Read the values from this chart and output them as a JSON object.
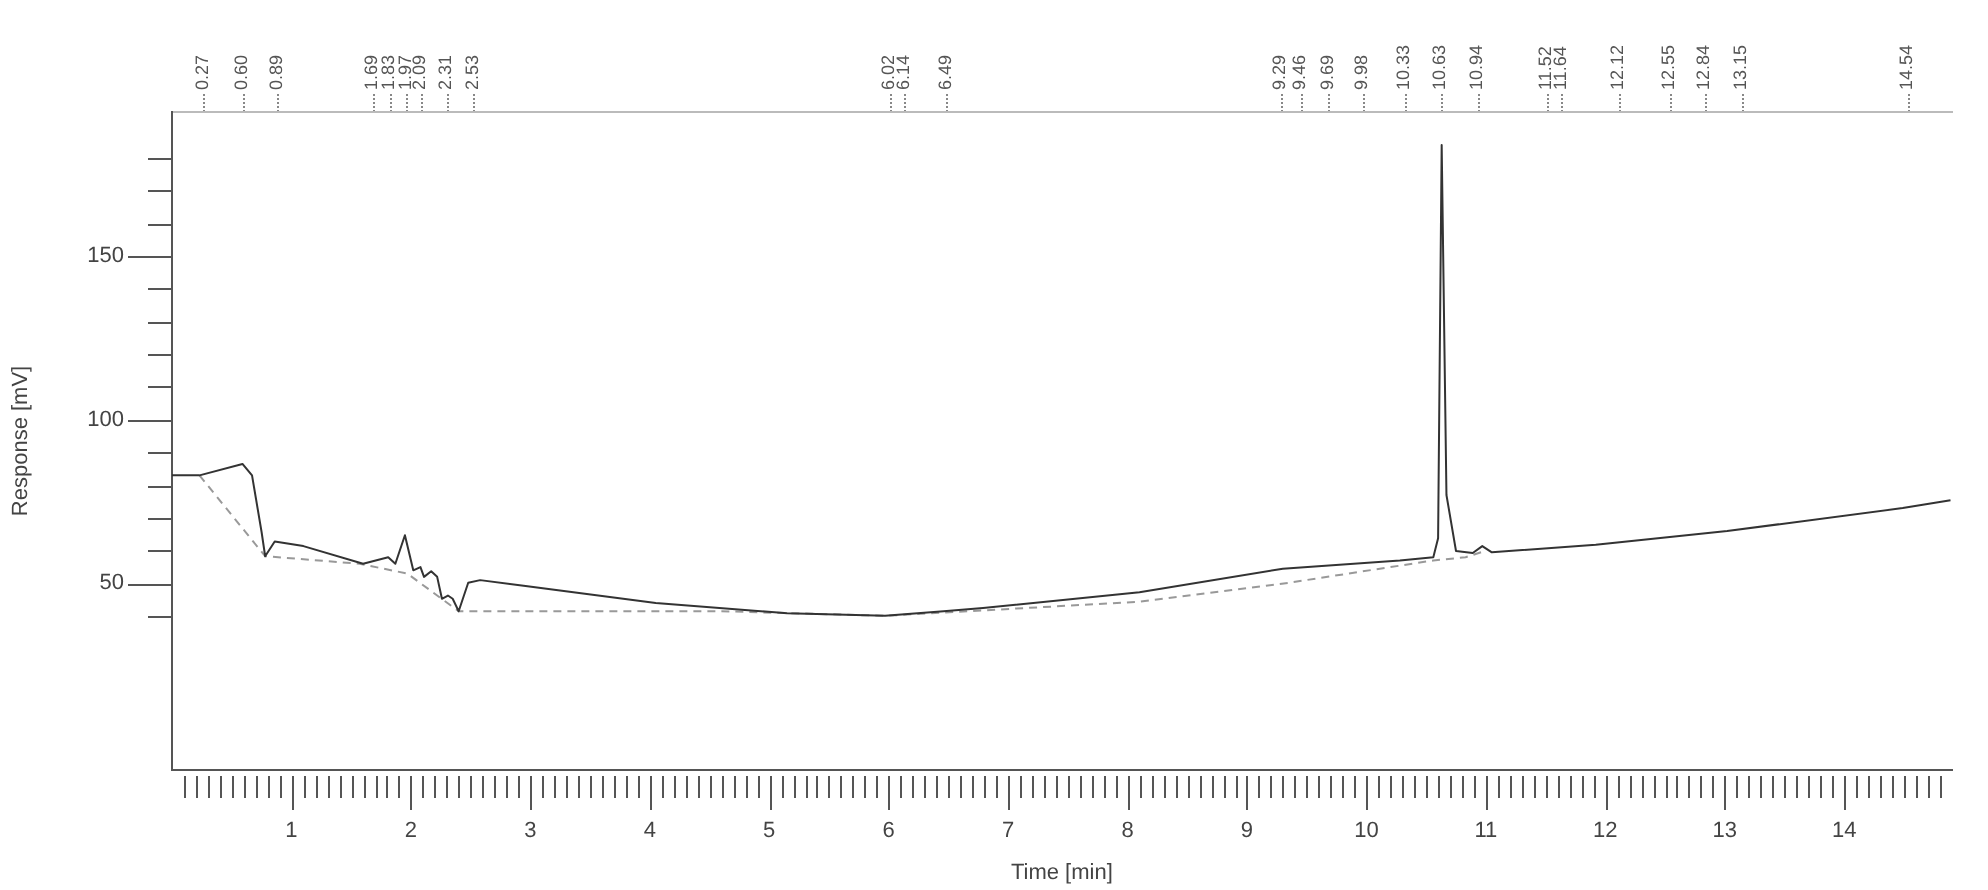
{
  "chart_data": {
    "type": "line",
    "xlabel": "Time [min]",
    "ylabel": "Response [mV]",
    "xlim": [
      0,
      14.9
    ],
    "ylim": [
      -7,
      194
    ],
    "xticks": [
      {
        "value": 0.1,
        "label": null
      },
      {
        "value": 0.2,
        "label": null
      },
      {
        "value": 0.3,
        "label": null
      },
      {
        "value": 0.4,
        "label": null
      },
      {
        "value": 0.5,
        "label": null
      },
      {
        "value": 0.6,
        "label": null
      },
      {
        "value": 0.7,
        "label": null
      },
      {
        "value": 0.8,
        "label": null
      },
      {
        "value": 0.9,
        "label": null
      },
      1,
      {
        "value": 1.1,
        "label": null
      },
      {
        "value": 1.2,
        "label": null
      },
      {
        "value": 1.3,
        "label": null
      },
      {
        "value": 1.4,
        "label": null
      },
      {
        "value": 1.5,
        "label": null
      },
      {
        "value": 1.6,
        "label": null
      },
      {
        "value": 1.7,
        "label": null
      },
      {
        "value": 1.8,
        "label": null
      },
      {
        "value": 1.9,
        "label": null
      },
      2,
      {
        "value": 2.1,
        "label": null
      },
      {
        "value": 2.2,
        "label": null
      },
      {
        "value": 2.3,
        "label": null
      },
      {
        "value": 2.4,
        "label": null
      },
      {
        "value": 2.5,
        "label": null
      },
      {
        "value": 2.6,
        "label": null
      },
      {
        "value": 2.7,
        "label": null
      },
      {
        "value": 2.8,
        "label": null
      },
      {
        "value": 2.9,
        "label": null
      },
      3,
      {
        "value": 3.1,
        "label": null
      },
      {
        "value": 3.2,
        "label": null
      },
      {
        "value": 3.3,
        "label": null
      },
      {
        "value": 3.4,
        "label": null
      },
      {
        "value": 3.5,
        "label": null
      },
      {
        "value": 3.6,
        "label": null
      },
      {
        "value": 3.7,
        "label": null
      },
      {
        "value": 3.8,
        "label": null
      },
      {
        "value": 3.9,
        "label": null
      },
      4,
      {
        "value": 4.1,
        "label": null
      },
      {
        "value": 4.2,
        "label": null
      },
      {
        "value": 4.3,
        "label": null
      },
      {
        "value": 4.4,
        "label": null
      },
      {
        "value": 4.5,
        "label": null
      },
      {
        "value": 4.6,
        "label": null
      },
      {
        "value": 4.7,
        "label": null
      },
      {
        "value": 4.8,
        "label": null
      },
      {
        "value": 4.9,
        "label": null
      },
      5,
      {
        "value": 5.1,
        "label": null
      },
      {
        "value": 5.2,
        "label": null
      },
      {
        "value": 5.3,
        "label": null
      },
      {
        "value": 5.4,
        "label": null
      },
      {
        "value": 5.5,
        "label": null
      },
      {
        "value": 5.6,
        "label": null
      },
      {
        "value": 5.7,
        "label": null
      },
      {
        "value": 5.8,
        "label": null
      },
      {
        "value": 5.9,
        "label": null
      },
      6,
      {
        "value": 6.1,
        "label": null
      },
      {
        "value": 6.2,
        "label": null
      },
      {
        "value": 6.3,
        "label": null
      },
      {
        "value": 6.4,
        "label": null
      },
      {
        "value": 6.5,
        "label": null
      },
      {
        "value": 6.6,
        "label": null
      },
      {
        "value": 6.7,
        "label": null
      },
      {
        "value": 6.8,
        "label": null
      },
      {
        "value": 6.9,
        "label": null
      },
      7,
      {
        "value": 7.1,
        "label": null
      },
      {
        "value": 7.2,
        "label": null
      },
      {
        "value": 7.3,
        "label": null
      },
      {
        "value": 7.4,
        "label": null
      },
      {
        "value": 7.5,
        "label": null
      },
      {
        "value": 7.6,
        "label": null
      },
      {
        "value": 7.7,
        "label": null
      },
      {
        "value": 7.8,
        "label": null
      },
      {
        "value": 7.9,
        "label": null
      },
      8,
      {
        "value": 8.1,
        "label": null
      },
      {
        "value": 8.2,
        "label": null
      },
      {
        "value": 8.3,
        "label": null
      },
      {
        "value": 8.4,
        "label": null
      },
      {
        "value": 8.5,
        "label": null
      },
      {
        "value": 8.6,
        "label": null
      },
      {
        "value": 8.7,
        "label": null
      },
      {
        "value": 8.8,
        "label": null
      },
      {
        "value": 8.9,
        "label": null
      },
      9,
      {
        "value": 9.1,
        "label": null
      },
      {
        "value": 9.2,
        "label": null
      },
      {
        "value": 9.3,
        "label": null
      },
      {
        "value": 9.4,
        "label": null
      },
      {
        "value": 9.5,
        "label": null
      },
      {
        "value": 9.6,
        "label": null
      },
      {
        "value": 9.7,
        "label": null
      },
      {
        "value": 9.8,
        "label": null
      },
      {
        "value": 9.9,
        "label": null
      },
      10,
      {
        "value": 10.1,
        "label": null
      },
      {
        "value": 10.2,
        "label": null
      },
      {
        "value": 10.3,
        "label": null
      },
      {
        "value": 10.4,
        "label": null
      },
      {
        "value": 10.5,
        "label": null
      },
      {
        "value": 10.6,
        "label": null
      },
      {
        "value": 10.7,
        "label": null
      },
      {
        "value": 10.8,
        "label": null
      },
      {
        "value": 10.9,
        "label": null
      },
      11,
      {
        "value": 11.1,
        "label": null
      },
      {
        "value": 11.2,
        "label": null
      },
      {
        "value": 11.3,
        "label": null
      },
      {
        "value": 11.4,
        "label": null
      },
      {
        "value": 11.5,
        "label": null
      },
      {
        "value": 11.6,
        "label": null
      },
      {
        "value": 11.7,
        "label": null
      },
      {
        "value": 11.8,
        "label": null
      },
      {
        "value": 11.9,
        "label": null
      },
      12,
      {
        "value": 12.1,
        "label": null
      },
      {
        "value": 12.2,
        "label": null
      },
      {
        "value": 12.3,
        "label": null
      },
      {
        "value": 12.4,
        "label": null
      },
      {
        "value": 12.5,
        "label": null
      },
      {
        "value": 12.6,
        "label": null
      },
      {
        "value": 12.7,
        "label": null
      },
      {
        "value": 12.8,
        "label": null
      },
      {
        "value": 12.9,
        "label": null
      },
      13,
      {
        "value": 13.1,
        "label": null
      },
      {
        "value": 13.2,
        "label": null
      },
      {
        "value": 13.3,
        "label": null
      },
      {
        "value": 13.4,
        "label": null
      },
      {
        "value": 13.5,
        "label": null
      },
      {
        "value": 13.6,
        "label": null
      },
      {
        "value": 13.7,
        "label": null
      },
      {
        "value": 13.8,
        "label": null
      },
      {
        "value": 13.9,
        "label": null
      },
      14,
      {
        "value": 14.1,
        "label": null
      },
      {
        "value": 14.2,
        "label": null
      },
      {
        "value": 14.3,
        "label": null
      },
      {
        "value": 14.4,
        "label": null
      },
      {
        "value": 14.5,
        "label": null
      },
      {
        "value": 14.6,
        "label": null
      },
      {
        "value": 14.7,
        "label": null
      },
      {
        "value": 14.8,
        "label": null
      }
    ],
    "yticks": [
      {
        "value": 40,
        "label": null
      },
      50,
      {
        "value": 60,
        "label": null
      },
      {
        "value": 70,
        "label": null
      },
      {
        "value": 80,
        "label": null
      },
      {
        "value": 90,
        "label": null
      },
      100,
      {
        "value": 110,
        "label": null
      },
      {
        "value": 120,
        "label": null
      },
      {
        "value": 130,
        "label": null
      },
      {
        "value": 140,
        "label": null
      },
      150,
      {
        "value": 160,
        "label": null
      },
      {
        "value": 170,
        "label": null
      },
      {
        "value": 180,
        "label": null
      }
    ],
    "grid": false,
    "legend": false,
    "marker": "none",
    "series": [
      {
        "color": "#333333",
        "line_style": "solid",
        "x": [
          0,
          0.23,
          0.59,
          0.67,
          0.75,
          0.78,
          0.86,
          1.1,
          1.6,
          1.81,
          1.87,
          1.95,
          2.02,
          2.08,
          2.11,
          2.17,
          2.22,
          2.26,
          2.31,
          2.35,
          2.4,
          2.48,
          2.58,
          2.96,
          4.05,
          5.15,
          5.97,
          6.46,
          6.79,
          8.1,
          9.3,
          10.28,
          10.56,
          10.6,
          10.63,
          10.67,
          10.75,
          10.89,
          10.97,
          11.05,
          11.92,
          13.02,
          14.49,
          14.89
        ],
        "values": [
          83,
          83,
          86.5,
          83,
          65.7,
          58.3,
          62.8,
          61.4,
          56,
          58,
          56,
          64.7,
          54,
          55,
          52,
          53.7,
          52,
          45.3,
          46.3,
          45.3,
          41.5,
          50.2,
          51,
          49.2,
          44,
          40.9,
          40.1,
          41.5,
          42.5,
          47.3,
          54.5,
          57,
          58,
          63.8,
          183.9,
          77,
          59.9,
          59.3,
          61.4,
          59.5,
          61.8,
          66,
          73,
          75.4
        ]
      },
      {
        "color": "#999999",
        "line_style": "dashed",
        "x": [
          0.23,
          0.78,
          1.57,
          1.97,
          2.4,
          4.6,
          5.97,
          8.1,
          9.35,
          10.56,
          10.83,
          11
        ],
        "values": [
          83,
          58.3,
          56,
          53,
          41.5,
          41.5,
          40.1,
          44.4,
          50.2,
          57,
          58,
          60
        ]
      }
    ],
    "x2lim": [
      0,
      14.9
    ],
    "x2ticks": [
      {
        "value": 0.27,
        "label": "0.27"
      },
      {
        "value": 0.6,
        "label": "0.60"
      },
      {
        "value": 0.89,
        "label": "0.89"
      },
      {
        "value": 1.69,
        "label": "1.69"
      },
      {
        "value": 1.83,
        "label": "1.83"
      },
      {
        "value": 1.97,
        "label": "1.97"
      },
      {
        "value": 2.09,
        "label": "2.09"
      },
      {
        "value": 2.31,
        "label": "2.31"
      },
      {
        "value": 2.53,
        "label": "2.53"
      },
      {
        "value": 6.02,
        "label": "6.02"
      },
      {
        "value": 6.14,
        "label": "6.14"
      },
      {
        "value": 6.49,
        "label": "6.49"
      },
      {
        "value": 9.29,
        "label": "9.29"
      },
      {
        "value": 9.46,
        "label": "9.46"
      },
      {
        "value": 9.69,
        "label": "9.69"
      },
      {
        "value": 9.98,
        "label": "9.98"
      },
      {
        "value": 10.33,
        "label": "10.33"
      },
      {
        "value": 10.63,
        "label": "10.63"
      },
      {
        "value": 10.94,
        "label": "10.94"
      },
      {
        "value": 11.52,
        "label": "11.52"
      },
      {
        "value": 11.64,
        "label": "11.64"
      },
      {
        "value": 12.12,
        "label": "12.12"
      },
      {
        "value": 12.55,
        "label": "12.55"
      },
      {
        "value": 12.84,
        "label": "12.84"
      },
      {
        "value": 13.15,
        "label": "13.15"
      },
      {
        "value": 14.54,
        "label": "14.54"
      }
    ]
  }
}
